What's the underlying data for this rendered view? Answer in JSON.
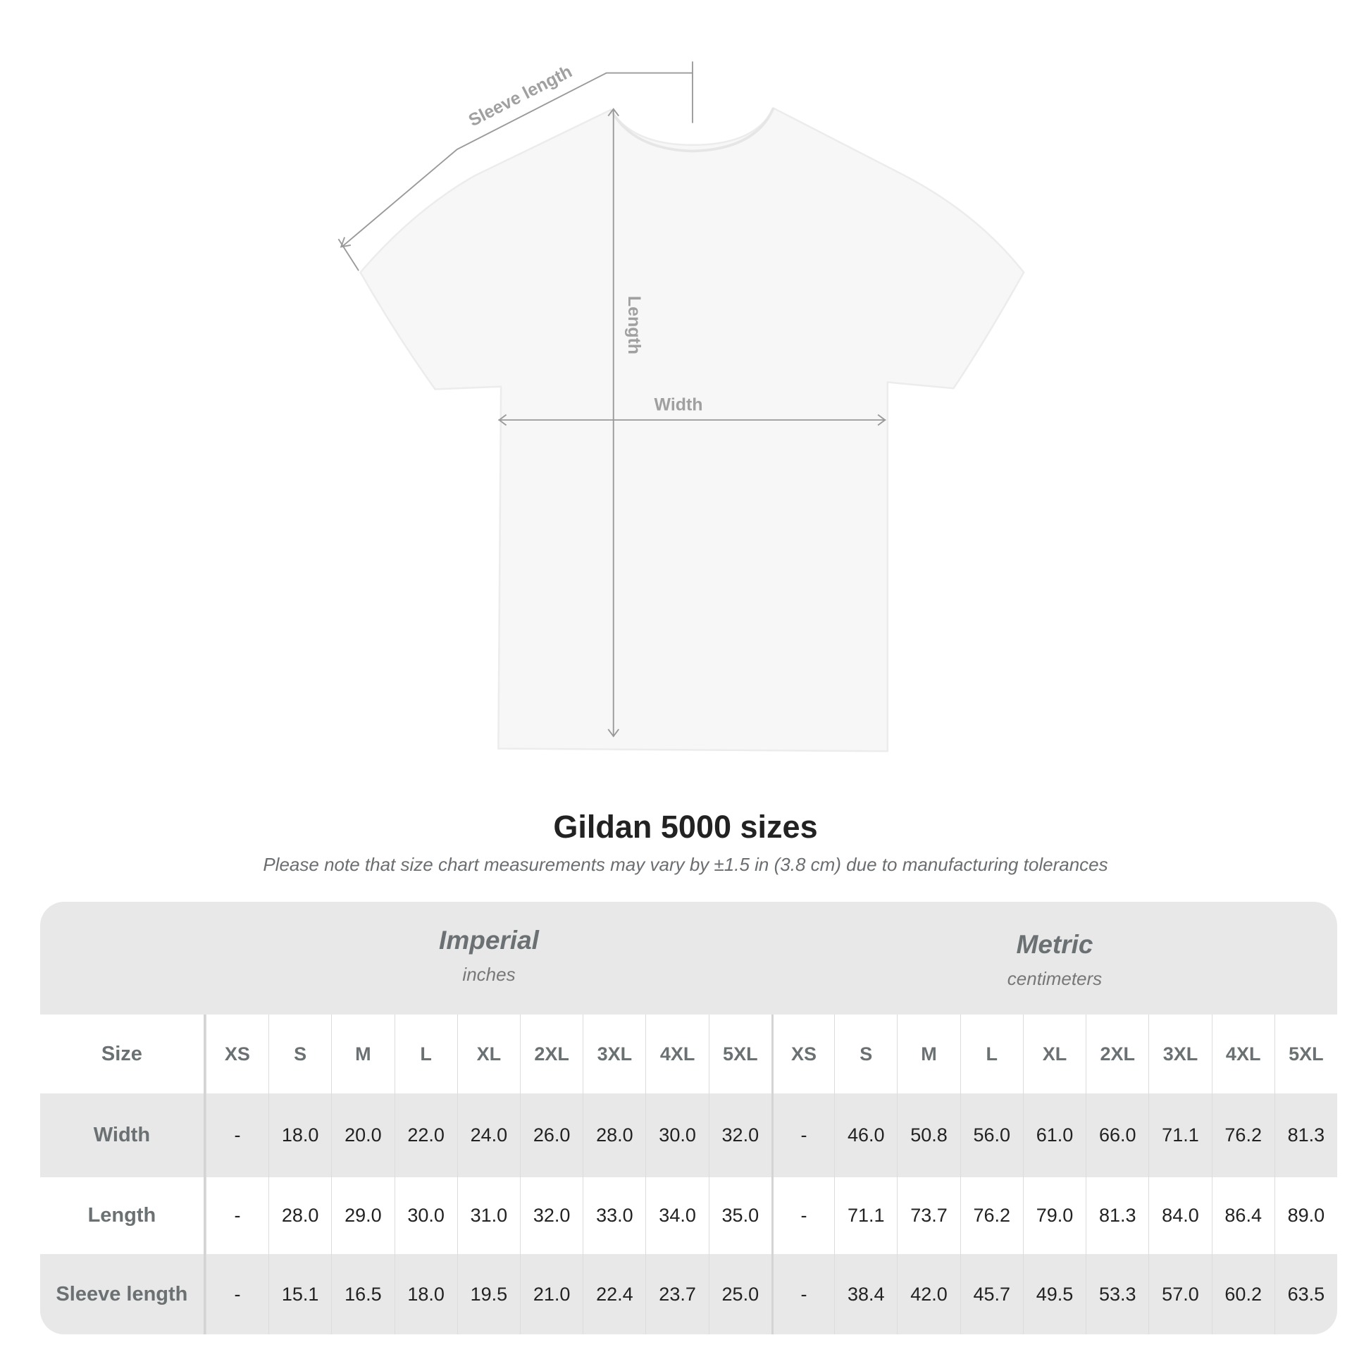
{
  "diagram": {
    "labels": {
      "sleeve_length": "Sleeve length",
      "length": "Length",
      "width": "Width"
    }
  },
  "title": "Gildan 5000 sizes",
  "subtitle": "Please note that size chart measurements may vary by ±1.5 in (3.8 cm) due to manufacturing tolerances",
  "table": {
    "imperial": {
      "name": "Imperial",
      "unit": "inches"
    },
    "metric": {
      "name": "Metric",
      "unit": "centimeters"
    },
    "size_label": "Size",
    "sizes": [
      "XS",
      "S",
      "M",
      "L",
      "XL",
      "2XL",
      "3XL",
      "4XL",
      "5XL"
    ],
    "rows": [
      {
        "label": "Width",
        "imperial": [
          "-",
          "18.0",
          "20.0",
          "22.0",
          "24.0",
          "26.0",
          "28.0",
          "30.0",
          "32.0"
        ],
        "metric": [
          "-",
          "46.0",
          "50.8",
          "56.0",
          "61.0",
          "66.0",
          "71.1",
          "76.2",
          "81.3"
        ]
      },
      {
        "label": "Length",
        "imperial": [
          "-",
          "28.0",
          "29.0",
          "30.0",
          "31.0",
          "32.0",
          "33.0",
          "34.0",
          "35.0"
        ],
        "metric": [
          "-",
          "71.1",
          "73.7",
          "76.2",
          "79.0",
          "81.3",
          "84.0",
          "86.4",
          "89.0"
        ]
      },
      {
        "label": "Sleeve length",
        "imperial": [
          "-",
          "15.1",
          "16.5",
          "18.0",
          "19.5",
          "21.0",
          "22.4",
          "23.7",
          "25.0"
        ],
        "metric": [
          "-",
          "38.4",
          "42.0",
          "45.7",
          "49.5",
          "53.3",
          "57.0",
          "60.2",
          "63.5"
        ]
      }
    ]
  }
}
